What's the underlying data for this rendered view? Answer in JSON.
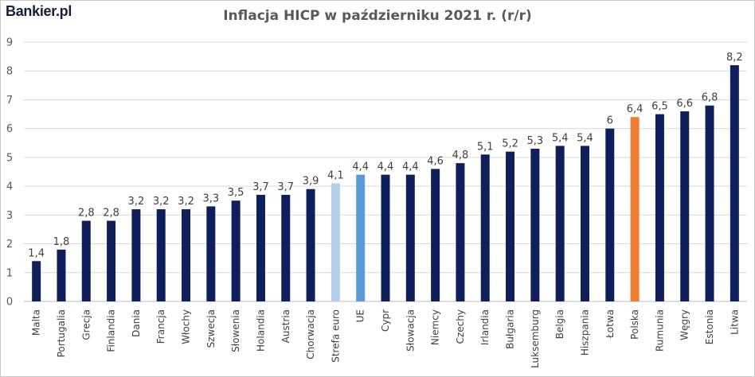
{
  "brand": "Bankier.pl",
  "chart_data": {
    "type": "bar",
    "title": "Inflacja HICP w październiku 2021 r. (r/r)",
    "xlabel": "",
    "ylabel": "",
    "ylim": [
      0,
      9
    ],
    "yticks": [
      0,
      1,
      2,
      3,
      4,
      5,
      6,
      7,
      8,
      9
    ],
    "grid": true,
    "categories": [
      "Malta",
      "Portugalia",
      "Grecja",
      "Finlandia",
      "Dania",
      "Francja",
      "Włochy",
      "Szwecja",
      "Słowenia",
      "Holandia",
      "Austria",
      "Chorwacja",
      "Strefa euro",
      "UE",
      "Cypr",
      "Słowacja",
      "Niemcy",
      "Czechy",
      "Irlandia",
      "Bułgaria",
      "Luksemburg",
      "Belgia",
      "Hiszpania",
      "Łotwa",
      "Polska",
      "Rumunia",
      "Węgry",
      "Estonia",
      "Litwa"
    ],
    "values": [
      1.4,
      1.8,
      2.8,
      2.8,
      3.2,
      3.2,
      3.2,
      3.3,
      3.5,
      3.7,
      3.7,
      3.9,
      4.1,
      4.4,
      4.4,
      4.4,
      4.6,
      4.8,
      5.1,
      5.2,
      5.3,
      5.4,
      5.4,
      6.0,
      6.4,
      6.5,
      6.6,
      6.8,
      8.2
    ],
    "value_labels": [
      "1,4",
      "1,8",
      "2,8",
      "2,8",
      "3,2",
      "3,2",
      "3,2",
      "3,3",
      "3,5",
      "3,7",
      "3,7",
      "3,9",
      "4,1",
      "4,4",
      "4,4",
      "4,4",
      "4,6",
      "4,8",
      "5,1",
      "5,2",
      "5,3",
      "5,4",
      "5,4",
      "6",
      "6,4",
      "6,5",
      "6,6",
      "6,8",
      "8,2"
    ],
    "colors": {
      "default": "#0f1f5c",
      "highlights": {
        "Strefa euro": "#b4cfe8",
        "UE": "#5b9bd5",
        "Polska": "#ed7d31"
      },
      "grid": "#d9d9d9"
    }
  }
}
